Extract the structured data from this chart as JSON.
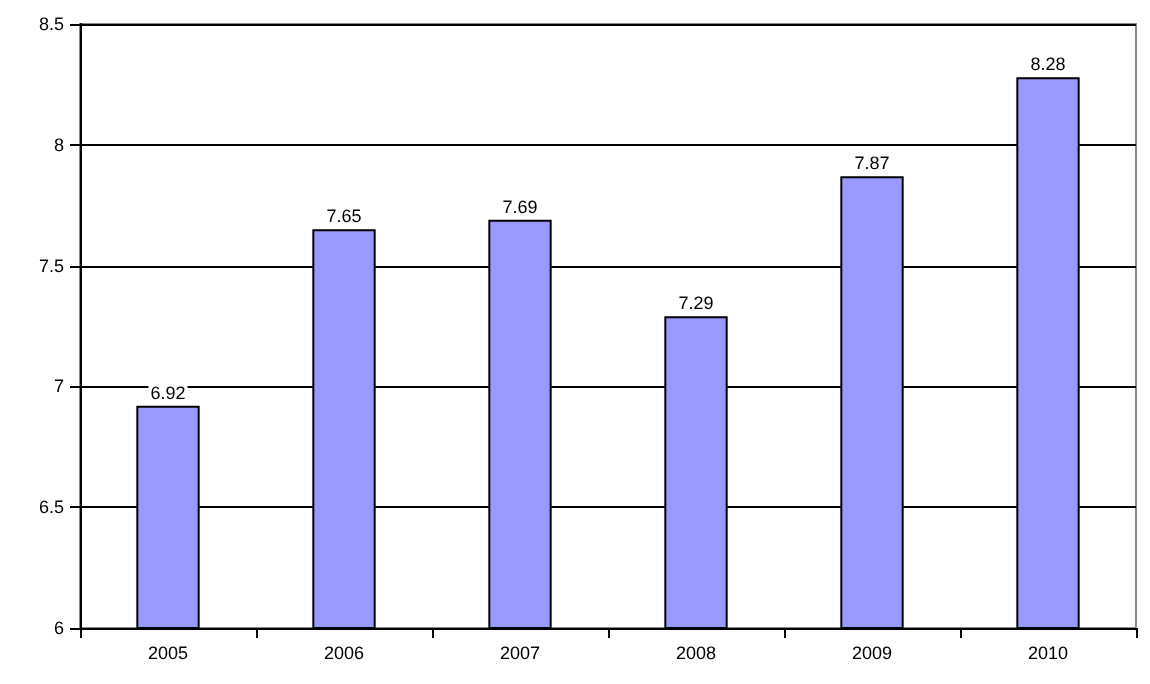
{
  "chart_data": {
    "type": "bar",
    "categories": [
      "2005",
      "2006",
      "2007",
      "2008",
      "2009",
      "2010"
    ],
    "values": [
      6.92,
      7.65,
      7.69,
      7.29,
      7.87,
      8.28
    ],
    "color": "#9999ff",
    "ylim": [
      6,
      8.5
    ],
    "yticks": [
      6,
      6.5,
      7,
      7.5,
      8,
      8.5
    ],
    "grid": "y",
    "data_labels": true
  }
}
